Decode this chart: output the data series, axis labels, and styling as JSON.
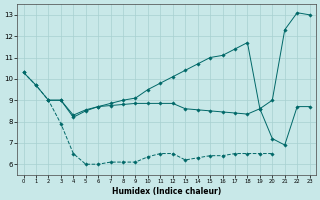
{
  "xlabel": "Humidex (Indice chaleur)",
  "background_color": "#c8e8e8",
  "grid_color": "#a8d0d0",
  "line_color": "#006868",
  "xlim": [
    -0.5,
    23.5
  ],
  "ylim": [
    5.5,
    13.5
  ],
  "xticks": [
    0,
    1,
    2,
    3,
    4,
    5,
    6,
    7,
    8,
    9,
    10,
    11,
    12,
    13,
    14,
    15,
    16,
    17,
    18,
    19,
    20,
    21,
    22,
    23
  ],
  "yticks": [
    6,
    7,
    8,
    9,
    10,
    11,
    12,
    13
  ],
  "line1_x": [
    0,
    1,
    2,
    3,
    4,
    5,
    6,
    7,
    8,
    9,
    10,
    11,
    12,
    13,
    14,
    15,
    16,
    17,
    18,
    19,
    20
  ],
  "line1_y": [
    10.3,
    9.7,
    9.0,
    7.9,
    6.5,
    6.0,
    6.0,
    6.1,
    6.1,
    6.1,
    6.35,
    6.5,
    6.5,
    6.2,
    6.3,
    6.4,
    6.4,
    6.5,
    6.5,
    6.5,
    6.5
  ],
  "line2_x": [
    0,
    1,
    2,
    3,
    4,
    5,
    6,
    7,
    8,
    9,
    10,
    11,
    12,
    13,
    14,
    15,
    16,
    17,
    18,
    19,
    20,
    21,
    22,
    23
  ],
  "line2_y": [
    10.3,
    9.7,
    9.0,
    9.0,
    8.2,
    8.5,
    8.7,
    8.85,
    9.0,
    9.1,
    9.5,
    9.8,
    10.1,
    10.4,
    10.7,
    11.0,
    11.1,
    11.4,
    11.7,
    8.6,
    9.0,
    12.3,
    13.1,
    13.0
  ],
  "line3_x": [
    2,
    3,
    4,
    5,
    6,
    7,
    8,
    9,
    10,
    11,
    12,
    13,
    14,
    15,
    16,
    17,
    18,
    19,
    20,
    21,
    22,
    23
  ],
  "line3_y": [
    9.0,
    9.0,
    8.3,
    8.55,
    8.7,
    8.75,
    8.8,
    8.85,
    8.85,
    8.85,
    8.85,
    8.6,
    8.55,
    8.5,
    8.45,
    8.4,
    8.35,
    8.6,
    7.2,
    6.9,
    8.7,
    8.7
  ]
}
